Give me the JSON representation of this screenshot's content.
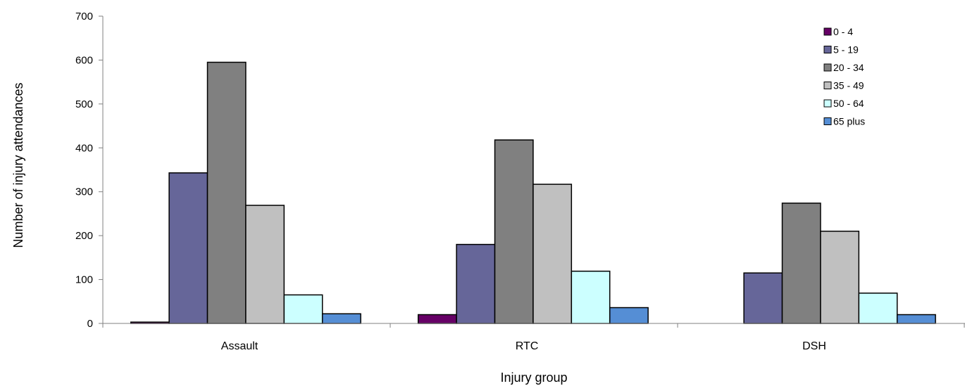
{
  "chart_data": {
    "type": "bar",
    "title": "",
    "xlabel": "Injury group",
    "ylabel": "Number of injury attendances",
    "categories": [
      "Assault",
      "RTC",
      "DSH"
    ],
    "ylim": [
      0,
      700
    ],
    "yticks": [
      0,
      100,
      200,
      300,
      400,
      500,
      600,
      700
    ],
    "grid": false,
    "legend_position": "top-right",
    "series": [
      {
        "name": "0 - 4",
        "color": "#660066",
        "values": [
          3,
          20,
          0
        ]
      },
      {
        "name": "5 - 19",
        "color": "#666699",
        "values": [
          343,
          180,
          115
        ]
      },
      {
        "name": "20 - 34",
        "color": "#808080",
        "values": [
          595,
          418,
          274
        ]
      },
      {
        "name": "35 - 49",
        "color": "#C0C0C0",
        "values": [
          269,
          317,
          210
        ]
      },
      {
        "name": "50 - 64",
        "color": "#CCFFFF",
        "values": [
          65,
          119,
          69
        ]
      },
      {
        "name": "65 plus",
        "color": "#558ED5",
        "values": [
          22,
          36,
          20
        ]
      }
    ]
  }
}
